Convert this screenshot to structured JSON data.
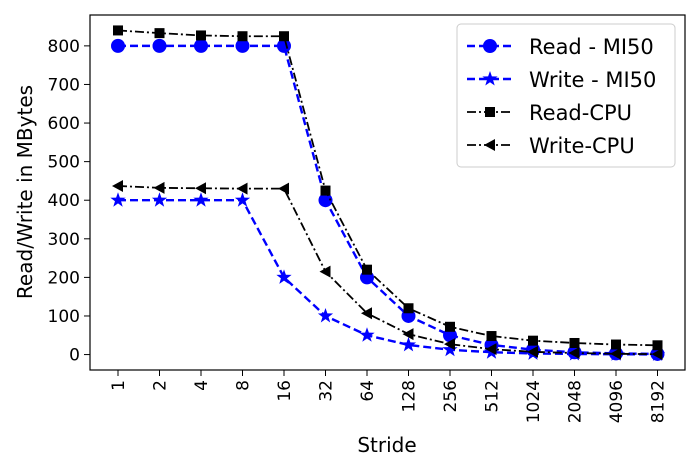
{
  "chart_data": {
    "type": "line",
    "title": "",
    "xlabel": "Stride",
    "ylabel": "Read/Write in MBytes",
    "categories": [
      "1",
      "2",
      "4",
      "8",
      "16",
      "32",
      "64",
      "128",
      "256",
      "512",
      "1024",
      "2048",
      "4096",
      "8192"
    ],
    "ylim": [
      -40,
      880
    ],
    "yticks": [
      0,
      100,
      200,
      300,
      400,
      500,
      600,
      700,
      800
    ],
    "grid": false,
    "legend_position": "top-right",
    "series": [
      {
        "name": "Read - MI50",
        "color": "#0000ff",
        "line_style": "dashed",
        "marker": "circle",
        "values": [
          800,
          800,
          800,
          800,
          800,
          400,
          200,
          100,
          50,
          25,
          12.5,
          6,
          3,
          1.5
        ]
      },
      {
        "name": "Write - MI50",
        "color": "#0000ff",
        "line_style": "dashed",
        "marker": "star",
        "values": [
          400,
          400,
          400,
          400,
          200,
          100,
          50,
          25,
          12.5,
          6,
          3,
          1.5,
          0.8,
          0.4
        ]
      },
      {
        "name": "Read-CPU",
        "color": "#000000",
        "line_style": "dashdot",
        "marker": "square",
        "values": [
          840,
          833,
          827,
          825,
          825,
          425,
          220,
          120,
          72,
          48,
          36,
          30,
          26,
          24
        ]
      },
      {
        "name": "Write-CPU",
        "color": "#000000",
        "line_style": "dashdot",
        "marker": "triangle-left",
        "values": [
          437,
          432,
          431,
          430,
          430,
          215,
          107,
          53,
          27,
          14,
          7,
          4,
          2,
          1
        ]
      }
    ]
  }
}
